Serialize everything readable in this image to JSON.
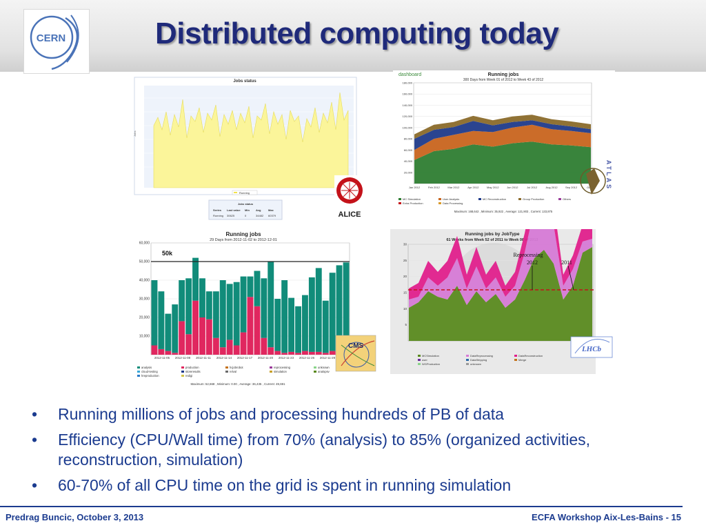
{
  "slide": {
    "title": "Distributed computing today",
    "logo_text": "CERN",
    "bullets": [
      "Running millions of jobs and processing hundreds of PB of data",
      "Efficiency (CPU/Wall time) from 70% (analysis) to 85% (organized activities, reconstruction, simulation)",
      "60-70% of  all CPU time on the grid is spent in running simulation"
    ],
    "bullet_glyph": "•",
    "footer_left": "Predrag Buncic, October 3, 2013",
    "footer_right": "ECFA  Workshop Aix-Les-Bains -  15",
    "colors": {
      "title": "#1f2a7a",
      "bullet_text": "#1b3b8f",
      "footer_rule": "#1b3b8f"
    }
  },
  "alice": {
    "chart_title": "Jobs status",
    "legend_label": "Running",
    "logo_text": "ALICE",
    "table": {
      "title": "Jobs status",
      "headers": [
        "Series",
        "Last value",
        "Min",
        "Avg",
        "Max"
      ],
      "row": [
        "Running",
        "30625",
        "0",
        "34482",
        "60379"
      ]
    }
  },
  "atlas": {
    "header_logo": "dashboard",
    "chart_title": "Running jobs",
    "chart_subtitle": "300 Days from Week 01 of 2012 to Week 43 of 2012",
    "logo_text": "ATLAS",
    "legend": [
      "MC Simulation",
      "User Analysis",
      "MC Reconstruction",
      "Group Production",
      "Others",
      "Extra Production",
      "Data Processing"
    ],
    "stats": "Maximum: 168,642 , Minimum: 35,922 , Average: 121,903 , Current: 133,875",
    "chart_data": {
      "type": "area",
      "categories": [
        "Jan 2012",
        "Feb 2012",
        "Mar 2012",
        "Apr 2012",
        "May 2012",
        "Jun 2012",
        "Jul 2012",
        "Aug 2012",
        "Sep 2012",
        "Oct 20"
      ],
      "yticks": [
        "20,000",
        "40,000",
        "60,000",
        "80,000",
        "100,000",
        "120,000",
        "140,000",
        "160,000",
        "180,000"
      ],
      "ylim": [
        0,
        180000
      ],
      "series": [
        {
          "name": "MC Simulation",
          "values": [
            42000,
            58000,
            62000,
            70000,
            66000,
            72000,
            75000,
            70000,
            68000,
            65000
          ]
        },
        {
          "name": "User Analysis",
          "values": [
            18000,
            22000,
            25000,
            24000,
            26000,
            28000,
            30000,
            27000,
            26000,
            25000
          ]
        },
        {
          "name": "MC Reconstruction",
          "values": [
            20000,
            16000,
            14000,
            18000,
            12000,
            10000,
            8000,
            9000,
            8000,
            7000
          ]
        },
        {
          "name": "Group Production",
          "values": [
            8000,
            9000,
            9000,
            9000,
            9000,
            10000,
            10000,
            9000,
            9000,
            9000
          ]
        }
      ],
      "colors": {
        "MC Simulation": "#2e7d32",
        "User Analysis": "#c8641e",
        "MC Reconstruction": "#1f3a8a",
        "Group Production": "#8a6a2a"
      }
    }
  },
  "cms": {
    "chart_title": "Running jobs",
    "chart_subtitle": "29 Days from 2012-11-02 to 2012-12-01",
    "annotation": "50k",
    "logo_text": "CMS",
    "legend": [
      "analysis",
      "production",
      "hcjobrobot",
      "reprocessing",
      "unknown",
      "cloud-testing",
      "storeresults",
      "relval",
      "simulation",
      "analopsv",
      "hreproduction",
      "redigi"
    ],
    "stats": "Maximum: 52,668 , Minimum: 0.00 , Average: 36,435 , Current: 49,691",
    "chart_data": {
      "type": "bar",
      "yticks": [
        "10,000",
        "20,000",
        "30,000",
        "40,000",
        "50,000",
        "60,000"
      ],
      "ylim": [
        0,
        60000
      ],
      "xticks": [
        "2012-11-05",
        "2012-11-08",
        "2012-11-11",
        "2012-11-14",
        "2012-11-17",
        "2012-11-20",
        "2012-11-23",
        "2012-11-26",
        "2012-11-29"
      ],
      "series": [
        {
          "name": "production",
          "values": [
            5000,
            3000,
            2000,
            1000,
            18000,
            11000,
            29000,
            20000,
            19000,
            9000,
            4000,
            8000,
            5000,
            12000,
            31000,
            26000,
            9000,
            4000,
            2000,
            1000,
            1500,
            1000,
            2000,
            1500,
            1500,
            1000,
            2000,
            1000,
            1500
          ]
        },
        {
          "name": "analysis",
          "values": [
            35000,
            31000,
            20000,
            26000,
            22000,
            30000,
            23000,
            21000,
            15000,
            25000,
            36000,
            30000,
            34000,
            30000,
            11000,
            19000,
            32000,
            46000,
            28000,
            39000,
            29000,
            25000,
            30000,
            40000,
            45000,
            28000,
            42000,
            47000,
            48000
          ]
        }
      ],
      "colors": {
        "analysis": "#118c7a",
        "production": "#e0275f"
      }
    }
  },
  "lhcb": {
    "chart_title": "Running jobs by JobType",
    "chart_subtitle": "61 Weeks from Week 52 of 2011 to Week 08 of 2013",
    "annotations": [
      "Reprocessing",
      "2012",
      "2011"
    ],
    "logo_text": "LHCb",
    "legend": [
      "MCSimulation",
      "DataReprocessing",
      "DataReconstruction",
      "user",
      "DataStripping",
      "Merge",
      "WGProduction",
      "unknown"
    ],
    "chart_data": {
      "type": "area",
      "yticks": [
        "5",
        "10",
        "15",
        "20",
        "25",
        "30"
      ],
      "ylim": [
        0,
        35
      ],
      "series": [
        {
          "name": "MCSimulation",
          "values": [
            12,
            14,
            18,
            16,
            15,
            20,
            13,
            18,
            14,
            17,
            12,
            15,
            22,
            30,
            33,
            28,
            15,
            20,
            32,
            34
          ]
        },
        {
          "name": "DataReprocessing",
          "values": [
            3,
            2,
            5,
            4,
            8,
            10,
            6,
            9,
            5,
            6,
            4,
            5,
            10,
            18,
            20,
            14,
            5,
            6,
            4,
            3
          ]
        },
        {
          "name": "DataReconstruction",
          "values": [
            4,
            5,
            6,
            5,
            6,
            8,
            5,
            7,
            5,
            6,
            4,
            5,
            7,
            8,
            9,
            8,
            4,
            5,
            6,
            5
          ]
        }
      ],
      "colors": {
        "MCSimulation": "#5a8a1f",
        "DataReprocessing": "#d67ad6",
        "DataReconstruction": "#e0208c"
      }
    }
  }
}
